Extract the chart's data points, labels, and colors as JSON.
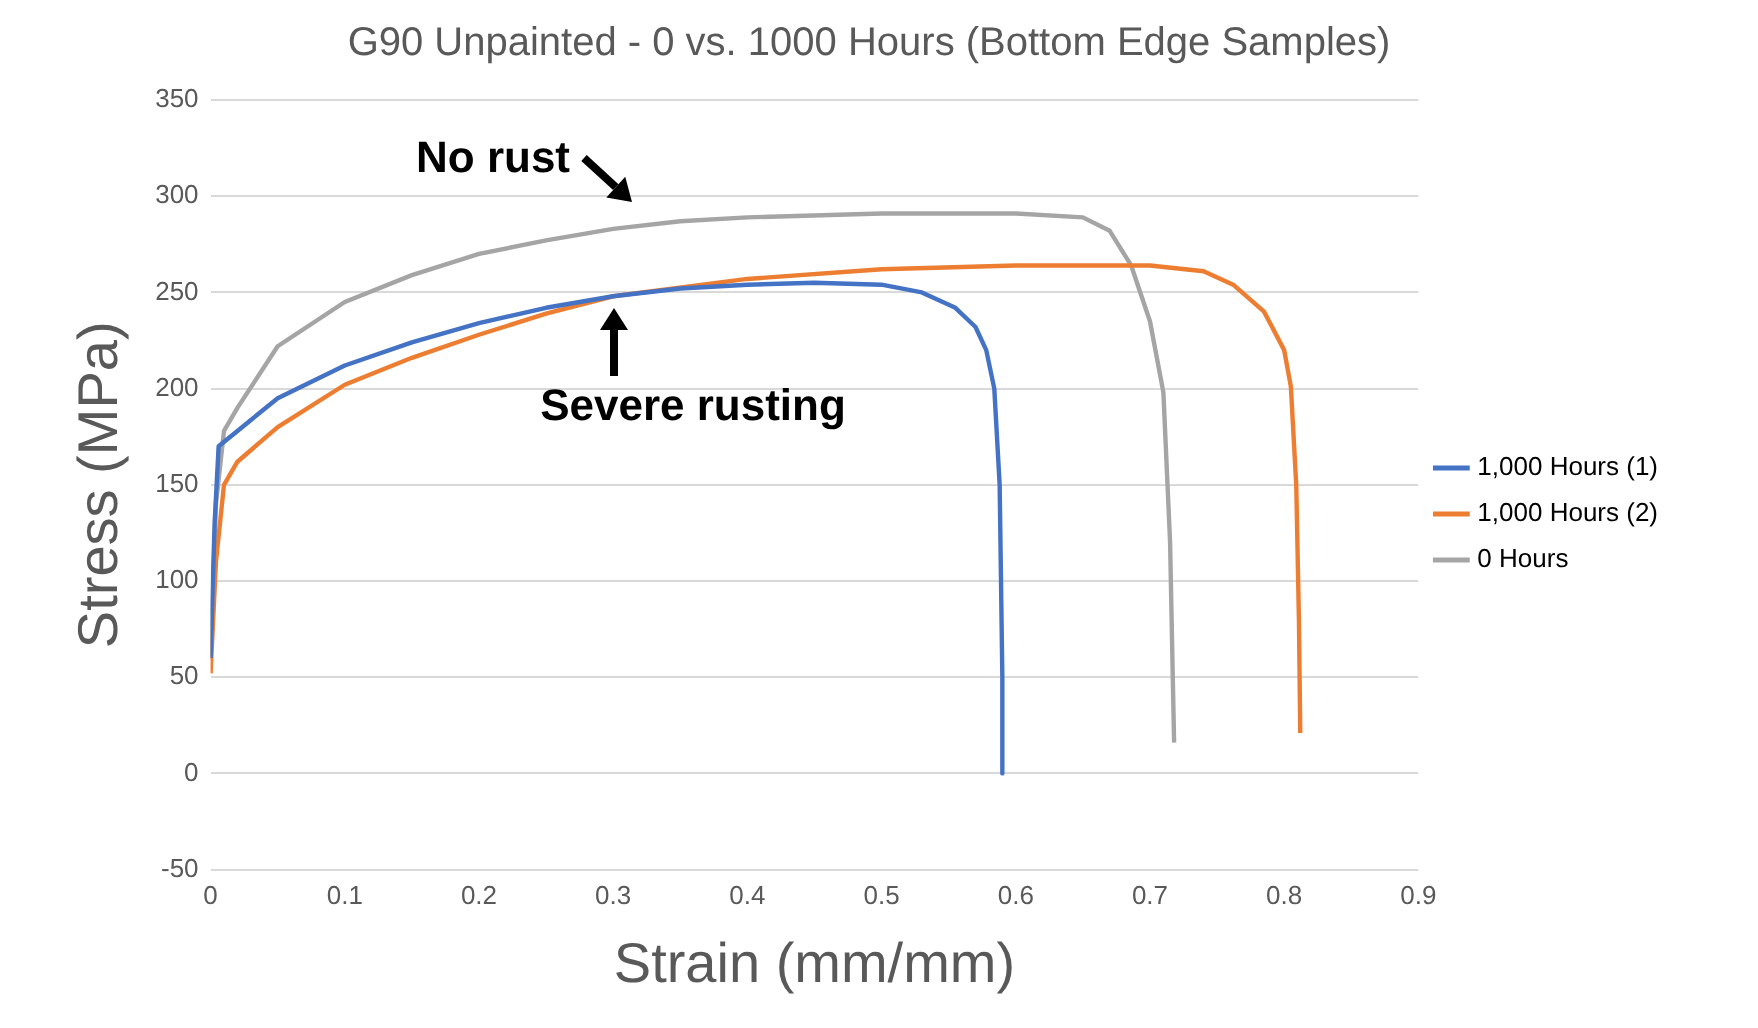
{
  "chart_data": {
    "type": "line",
    "title": "G90 Unpainted - 0 vs. 1000 Hours (Bottom Edge Samples)",
    "xlabel": "Strain (mm/mm)",
    "ylabel": "Stress (MPa)",
    "xlim": [
      0,
      0.9
    ],
    "xticks": [
      0,
      0.1,
      0.2,
      0.3,
      0.4,
      0.5,
      0.6,
      0.7,
      0.8,
      0.9
    ],
    "ylim": [
      -50,
      350
    ],
    "yticks": [
      -50,
      0,
      50,
      100,
      150,
      200,
      250,
      300,
      350
    ],
    "grid": "y",
    "legend": "right",
    "marker": "none",
    "line_style": "solid",
    "series": [
      {
        "name": "1,000 Hours (1)",
        "color": "#4472c4",
        "x": [
          0,
          0.003,
          0.006,
          0.02,
          0.05,
          0.1,
          0.15,
          0.2,
          0.25,
          0.3,
          0.35,
          0.4,
          0.45,
          0.5,
          0.53,
          0.555,
          0.57,
          0.578,
          0.584,
          0.588,
          0.59,
          0.59
        ],
        "values": [
          60,
          130,
          170,
          178,
          195,
          212,
          224,
          234,
          242,
          248,
          252,
          254,
          255,
          254,
          250,
          242,
          232,
          220,
          200,
          150,
          50,
          0
        ]
      },
      {
        "name": "1,000 Hours (2)",
        "color": "#ed7d31",
        "x": [
          0,
          0.004,
          0.01,
          0.02,
          0.05,
          0.1,
          0.15,
          0.2,
          0.25,
          0.3,
          0.4,
          0.5,
          0.6,
          0.7,
          0.74,
          0.762,
          0.785,
          0.8,
          0.805,
          0.809,
          0.811,
          0.812
        ],
        "values": [
          52,
          110,
          150,
          162,
          180,
          202,
          216,
          228,
          239,
          248,
          257,
          262,
          264,
          264,
          261,
          254,
          240,
          220,
          201,
          150,
          80,
          21
        ]
      },
      {
        "name": "0 Hours",
        "color": "#a5a5a5",
        "x": [
          0,
          0.004,
          0.01,
          0.02,
          0.05,
          0.1,
          0.15,
          0.2,
          0.25,
          0.3,
          0.35,
          0.4,
          0.5,
          0.6,
          0.65,
          0.67,
          0.686,
          0.7,
          0.71,
          0.715,
          0.717,
          0.718
        ],
        "values": [
          60,
          140,
          178,
          190,
          222,
          245,
          259,
          270,
          277,
          283,
          287,
          289,
          291,
          291,
          289,
          282,
          264,
          235,
          198,
          120,
          50,
          16
        ]
      }
    ],
    "annotations": [
      {
        "text": "No rust",
        "x": 0.32,
        "y": 287
      },
      {
        "text": "Severe rusting",
        "x": 0.3,
        "y": 248
      }
    ]
  }
}
